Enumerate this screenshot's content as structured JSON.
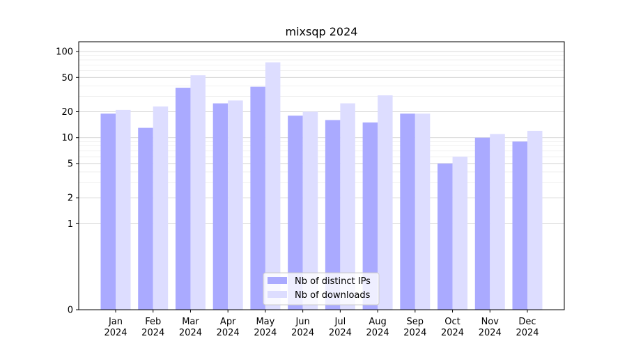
{
  "chart_data": {
    "type": "bar",
    "title": "mixsqp 2024",
    "xlabel": "",
    "ylabel": "",
    "yscale": "symlog",
    "ylim": [
      0,
      130
    ],
    "yticks": [
      0,
      1,
      2,
      5,
      10,
      20,
      50,
      100
    ],
    "ytick_labels": [
      "0",
      "1",
      "2",
      "5",
      "10",
      "20",
      "50",
      "100"
    ],
    "grid": true,
    "legend_position": "bottom-center",
    "categories": [
      [
        "Jan",
        "2024"
      ],
      [
        "Feb",
        "2024"
      ],
      [
        "Mar",
        "2024"
      ],
      [
        "Apr",
        "2024"
      ],
      [
        "May",
        "2024"
      ],
      [
        "Jun",
        "2024"
      ],
      [
        "Jul",
        "2024"
      ],
      [
        "Aug",
        "2024"
      ],
      [
        "Sep",
        "2024"
      ],
      [
        "Oct",
        "2024"
      ],
      [
        "Nov",
        "2024"
      ],
      [
        "Dec",
        "2024"
      ]
    ],
    "series": [
      {
        "name": "Nb of distinct IPs",
        "color": "#aaaaff",
        "values": [
          19,
          13,
          38,
          25,
          39,
          18,
          16,
          15,
          19,
          5,
          10,
          9
        ]
      },
      {
        "name": "Nb of downloads",
        "color": "#ddddff",
        "values": [
          21,
          23,
          53,
          27,
          75,
          20,
          25,
          31,
          19,
          6,
          11,
          12
        ]
      }
    ]
  }
}
